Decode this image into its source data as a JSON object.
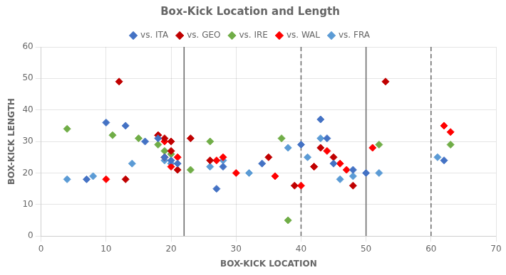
{
  "chart_data": {
    "type": "scatter",
    "title": "Box-Kick Location and Length",
    "xlabel": "BOX-KICK LOCATION",
    "ylabel": "BOX-KICK LENGTH",
    "xlim": [
      0,
      70
    ],
    "ylim": [
      0,
      60
    ],
    "xticks": [
      0,
      10,
      20,
      30,
      40,
      50,
      60,
      70
    ],
    "yticks": [
      0,
      10,
      20,
      30,
      40,
      50,
      60
    ],
    "grid": true,
    "legend": "top",
    "marker": "diamond",
    "vlines": [
      {
        "x": 22,
        "line_style": "solid",
        "color": "#666666"
      },
      {
        "x": 50,
        "line_style": "solid",
        "color": "#666666"
      },
      {
        "x": 40,
        "line_style": "dashed",
        "color": "#666666"
      },
      {
        "x": 60,
        "line_style": "dashed",
        "color": "#666666"
      }
    ],
    "series": [
      {
        "name": "vs. ITA",
        "color": "#4472c4",
        "x": [
          7,
          10,
          13,
          16,
          18,
          19,
          20,
          21,
          27,
          28,
          34,
          40,
          43,
          44,
          45,
          48,
          50,
          62
        ],
        "y": [
          18,
          36,
          35,
          30,
          31,
          25,
          24,
          23,
          15,
          22,
          23,
          29,
          37,
          31,
          23,
          21,
          20,
          24
        ]
      },
      {
        "name": "vs. GEO",
        "color": "#c00000",
        "x": [
          12,
          13,
          18,
          19,
          19,
          20,
          20,
          21,
          23,
          26,
          35,
          39,
          42,
          43,
          45,
          48,
          53
        ],
        "y": [
          49,
          18,
          32,
          31,
          25,
          27,
          30,
          21,
          31,
          24,
          25,
          16,
          22,
          28,
          25,
          16,
          49
        ]
      },
      {
        "name": "vs. IRE",
        "color": "#70ad47",
        "x": [
          4,
          11,
          15,
          18,
          19,
          20,
          23,
          26,
          37,
          38,
          52,
          63
        ],
        "y": [
          34,
          32,
          31,
          29,
          27,
          26,
          21,
          30,
          31,
          5,
          29,
          29
        ]
      },
      {
        "name": "vs. WAL",
        "color": "#ff0000",
        "x": [
          10,
          18,
          19,
          20,
          21,
          27,
          28,
          30,
          36,
          40,
          42,
          44,
          46,
          47,
          51,
          62,
          63
        ],
        "y": [
          18,
          32,
          30,
          22,
          25,
          24,
          25,
          20,
          19,
          16,
          22,
          27,
          23,
          21,
          28,
          35,
          33
        ]
      },
      {
        "name": "vs. FRA",
        "color": "#5b9bd5",
        "x": [
          4,
          8,
          14,
          19,
          20,
          26,
          28,
          32,
          38,
          41,
          43,
          46,
          48,
          52,
          61
        ],
        "y": [
          18,
          19,
          23,
          24,
          23,
          22,
          24,
          20,
          28,
          25,
          31,
          18,
          19,
          20,
          25
        ]
      }
    ]
  }
}
